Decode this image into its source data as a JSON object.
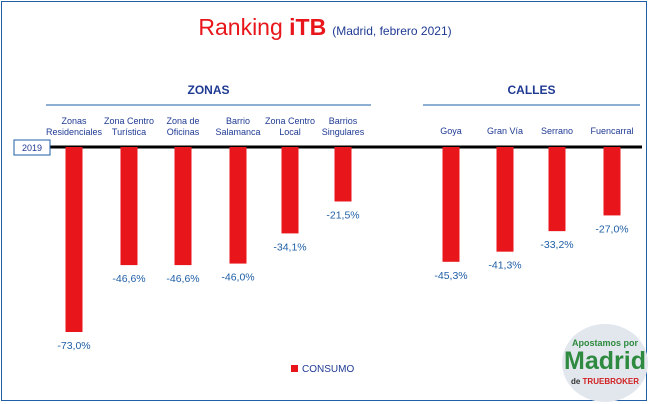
{
  "title": {
    "main": "Ranking ",
    "bold": "iTB",
    "sub": "(Madrid, febrero 2021)"
  },
  "colors": {
    "bar": "#e8161b",
    "label": "#1f5fa6",
    "baseline": "#000000",
    "border": "#1f5fa6"
  },
  "chart_data": {
    "type": "bar",
    "title": "Ranking iTB",
    "subtitle": "(Madrid, febrero 2021)",
    "baseline_label": "2019",
    "groups": [
      {
        "name": "ZONAS",
        "category_indices": [
          0,
          1,
          2,
          3,
          4,
          5
        ]
      },
      {
        "name": "CALLES",
        "category_indices": [
          6,
          7,
          8,
          9
        ]
      }
    ],
    "categories": [
      [
        "Zonas",
        "Residenciales"
      ],
      [
        "Zona Centro",
        "Turística"
      ],
      [
        "Zona de",
        "Oficinas"
      ],
      [
        "Barrio",
        "Salamanca"
      ],
      [
        "Zona Centro",
        "Local"
      ],
      [
        "Barrios",
        "Singulares"
      ],
      [
        "Goya"
      ],
      [
        "Gran Vía"
      ],
      [
        "Serrano"
      ],
      [
        "Fuencarral"
      ]
    ],
    "series": [
      {
        "name": "CONSUMO",
        "values": [
          -73.0,
          -46.6,
          -46.6,
          -46.0,
          -34.1,
          -21.5,
          -45.3,
          -41.3,
          -33.2,
          -27.0
        ]
      }
    ],
    "value_labels": [
      "-73,0%",
      "-46,6%",
      "-46,6%",
      "-46,0%",
      "-34,1%",
      "-21,5%",
      "-45,3%",
      "-41,3%",
      "-33,2%",
      "-27,0%"
    ],
    "ylim": [
      -80,
      0
    ],
    "legend": "bottom-center",
    "grid": false
  },
  "logo": {
    "top": "Apostamos por",
    "main": "Madrid",
    "bottom_prefix": "de ",
    "bottom_brand": "TRUEBROKER"
  }
}
